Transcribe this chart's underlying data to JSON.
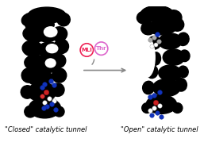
{
  "bg_color": "#ffffff",
  "left_label": "\"Closed\" catalytic tunnel",
  "right_label": "\"Open\" catalytic tunnel",
  "mli_label": "MLI",
  "thr_label": "Thr",
  "mli_color": "#ee2255",
  "thr_color": "#dd66cc",
  "arrow_color": "#888888",
  "label_fontsize": 6.0,
  "circle_fontsize": 5.0,
  "fig_width": 2.57,
  "fig_height": 1.89
}
